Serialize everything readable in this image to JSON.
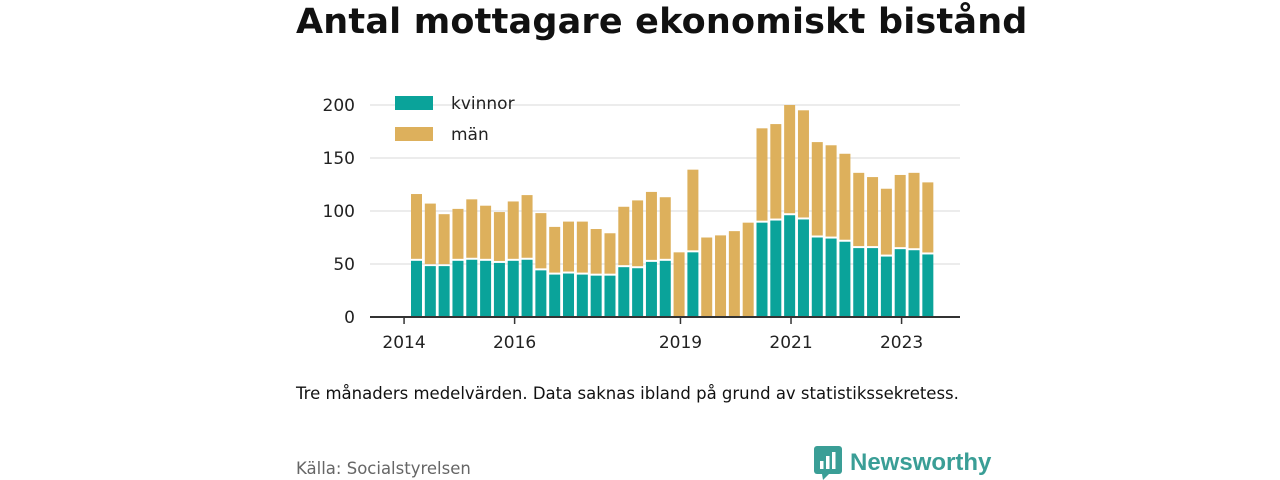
{
  "title": "Antal mottagare ekonomiskt bistånd",
  "note": "Tre månaders medelvärden. Data saknas ibland på grund av statistikssekretess.",
  "source": "Källa: Socialstyrelsen",
  "brand": {
    "name": "Newsworthy",
    "icon": "newsworthy-logo-icon",
    "color": "#3a9e96"
  },
  "colors": {
    "kvinnor": "#0aa39a",
    "man": "#ddb05c",
    "grid": "#d9d9d9",
    "axis": "#333333"
  },
  "chart_data": {
    "type": "bar",
    "stacked": true,
    "ylim": [
      0,
      200
    ],
    "yticks": [
      0,
      50,
      100,
      150,
      200
    ],
    "xticks": [
      "2014",
      "2016",
      "2019",
      "2021",
      "2023"
    ],
    "legend": [
      "kvinnor",
      "män"
    ],
    "legend_position": "top-left",
    "grid": true,
    "series": [
      {
        "name": "kvinnor",
        "values": [
          53,
          48,
          48,
          53,
          54,
          53,
          51,
          53,
          54,
          44,
          40,
          41,
          40,
          39,
          39,
          47,
          46,
          52,
          53,
          null,
          61,
          null,
          null,
          null,
          null,
          89,
          91,
          96,
          92,
          75,
          74,
          71,
          65,
          65,
          57,
          64,
          63,
          59
        ]
      },
      {
        "name": "män",
        "values": [
          63,
          59,
          49,
          49,
          57,
          52,
          48,
          56,
          61,
          54,
          45,
          49,
          50,
          44,
          40,
          57,
          64,
          66,
          60,
          61,
          78,
          75,
          77,
          81,
          89,
          89,
          91,
          104,
          103,
          90,
          88,
          83,
          71,
          67,
          64,
          70,
          73,
          68
        ]
      }
    ]
  }
}
